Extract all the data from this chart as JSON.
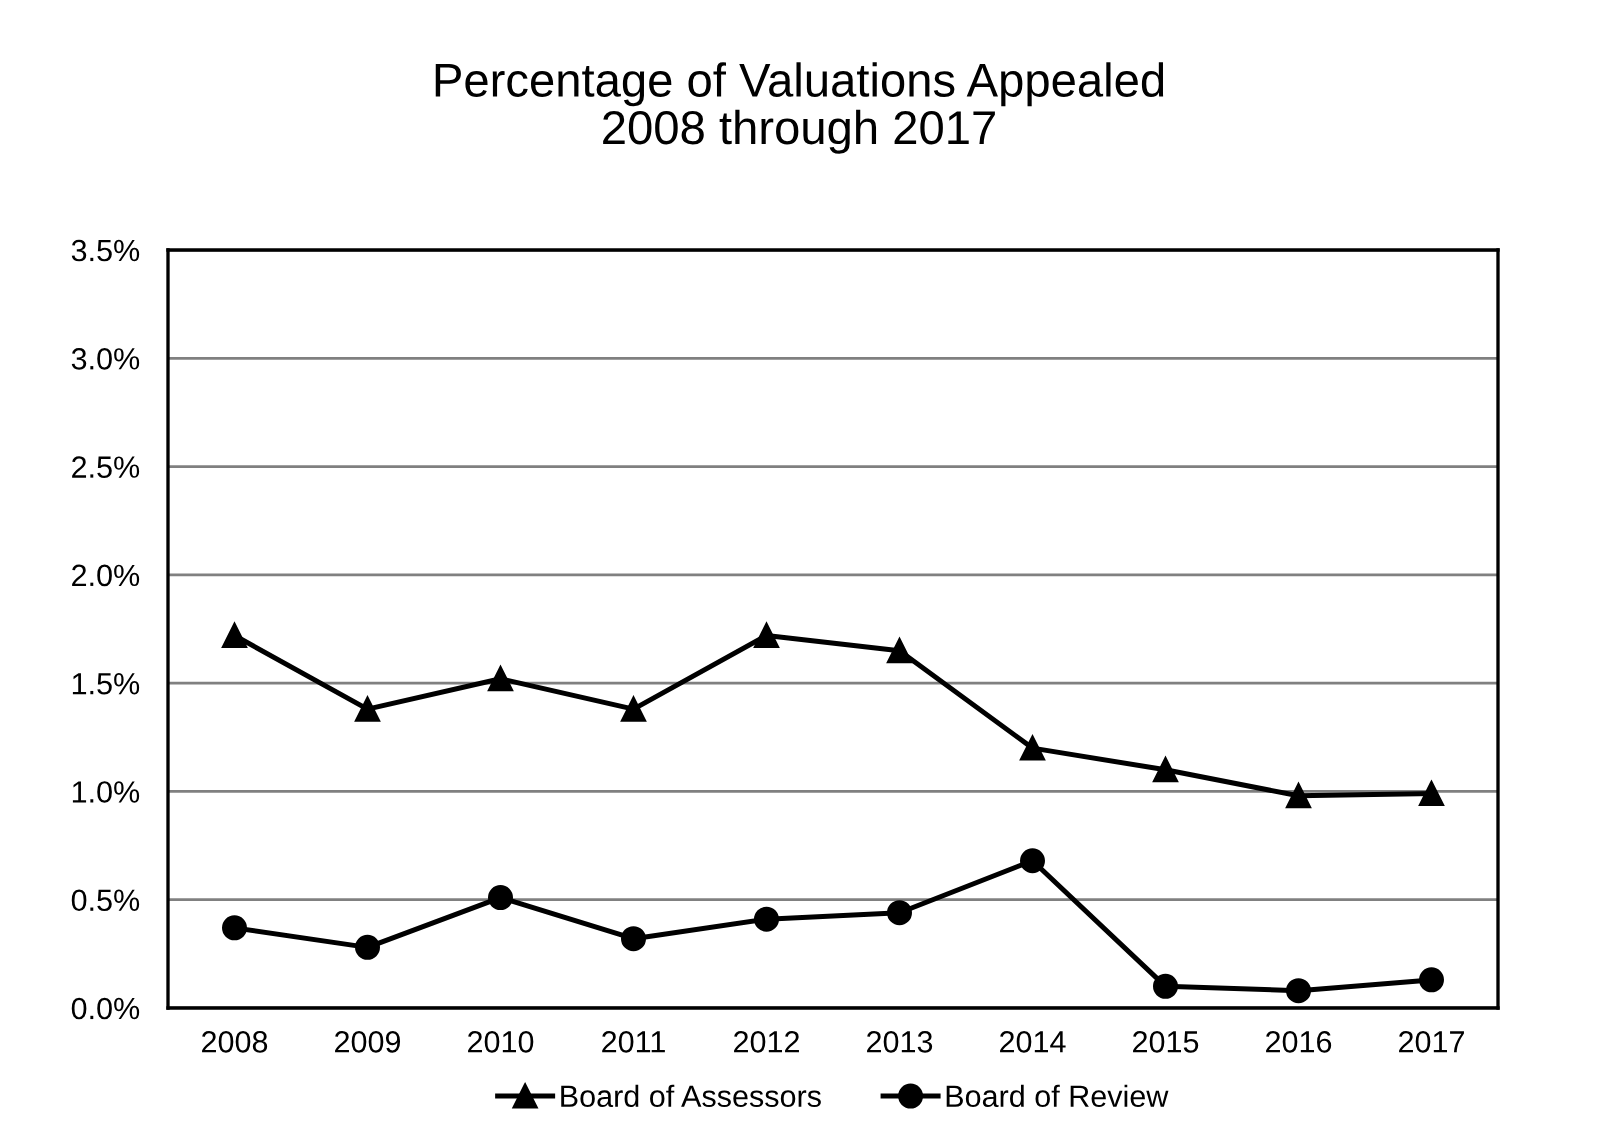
{
  "chart_data": {
    "type": "line",
    "title": "Percentage of Valuations Appealed\n2008 through 2017",
    "categories": [
      "2008",
      "2009",
      "2010",
      "2011",
      "2012",
      "2013",
      "2014",
      "2015",
      "2016",
      "2017"
    ],
    "series": [
      {
        "name": "Board of Assessors",
        "color": "#000000",
        "marker": "triangle",
        "values": [
          1.72,
          1.38,
          1.52,
          1.38,
          1.72,
          1.65,
          1.2,
          1.1,
          0.98,
          0.99
        ]
      },
      {
        "name": "Board of Review",
        "color": "#000000",
        "marker": "circle",
        "values": [
          0.37,
          0.28,
          0.51,
          0.32,
          0.41,
          0.44,
          0.68,
          0.1,
          0.08,
          0.13
        ]
      }
    ],
    "ylim": [
      0,
      3.5
    ],
    "yticks": [
      {
        "value": 0,
        "label": "0.0%"
      },
      {
        "value": 0.5,
        "label": "0.5%"
      },
      {
        "value": 1.0,
        "label": "1.0%"
      },
      {
        "value": 1.5,
        "label": "1.5%"
      },
      {
        "value": 2.0,
        "label": "2.0%"
      },
      {
        "value": 2.5,
        "label": "2.5%"
      },
      {
        "value": 3.0,
        "label": "3.0%"
      },
      {
        "value": 3.5,
        "label": "3.5%"
      }
    ],
    "grid": "y",
    "legend": "bottom",
    "line_style": "solid"
  }
}
